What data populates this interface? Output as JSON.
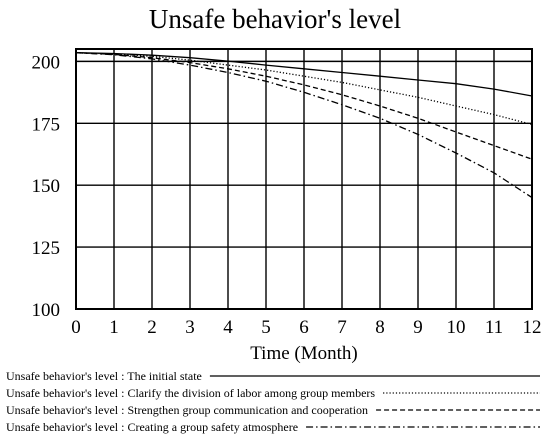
{
  "chart_data": {
    "type": "line",
    "title": "Unsafe behavior's level",
    "xlabel": "Time (Month)",
    "ylabel": "",
    "xlim": [
      0,
      12
    ],
    "ylim": [
      100,
      205
    ],
    "x_ticks": [
      "0",
      "1",
      "2",
      "3",
      "4",
      "5",
      "6",
      "7",
      "8",
      "9",
      "10",
      "11",
      "12"
    ],
    "y_ticks": [
      "200",
      "175",
      "150",
      "125",
      "100"
    ],
    "grid": true,
    "legend_position": "bottom",
    "x": [
      0,
      1,
      2,
      3,
      4,
      5,
      6,
      7,
      8,
      9,
      10,
      11,
      12
    ],
    "series": [
      {
        "name": "Unsafe behavior's level : The initial state",
        "dash": "solid",
        "values": [
          203.5,
          203.2,
          202.5,
          201.5,
          200.1,
          198.5,
          197,
          195.5,
          194,
          192.5,
          191,
          188.8,
          186
        ]
      },
      {
        "name": "Unsafe behavior's level : Clarify the division of labor among group members",
        "dash": "dotted",
        "values": [
          203.5,
          203,
          202,
          200.5,
          198.5,
          196.5,
          194,
          191.5,
          188.5,
          185.5,
          182,
          178.5,
          174.5
        ]
      },
      {
        "name": "Unsafe behavior's level : Strengthen group communication and cooperation",
        "dash": "dashed",
        "values": [
          203.5,
          202.8,
          201.5,
          199.5,
          197,
          194,
          190.5,
          186.5,
          182,
          177,
          171.5,
          166,
          160.5
        ]
      },
      {
        "name": "Unsafe behavior's level : Creating a group safety atmosphere",
        "dash": "dashdot",
        "values": [
          203.5,
          202.7,
          201,
          198.5,
          195.5,
          192,
          187.5,
          182.5,
          177,
          170.5,
          163,
          155,
          145
        ]
      }
    ]
  }
}
